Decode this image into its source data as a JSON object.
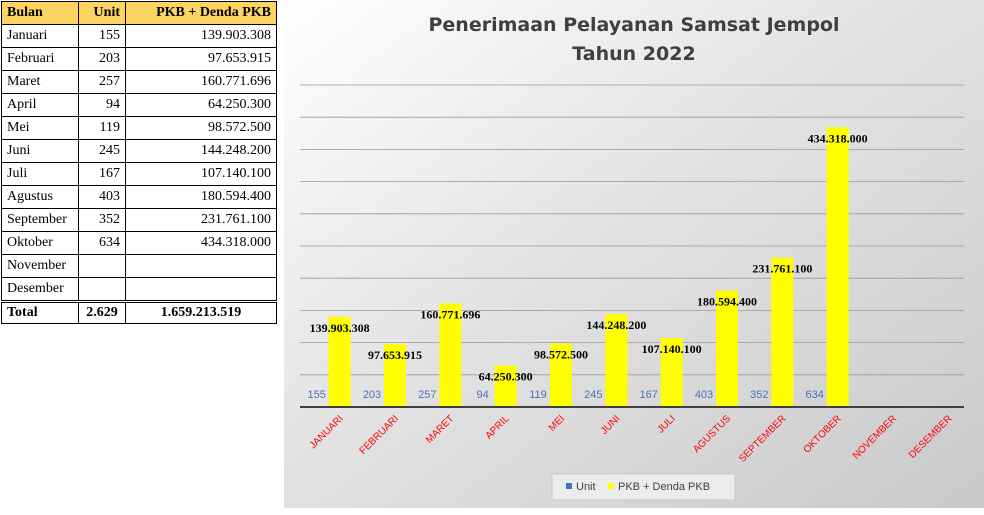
{
  "table": {
    "headers": [
      "Bulan",
      "Unit",
      "PKB + Denda PKB"
    ],
    "rows": [
      {
        "month": "Januari",
        "unit": "155",
        "value": "139.903.308"
      },
      {
        "month": "Februari",
        "unit": "203",
        "value": "97.653.915"
      },
      {
        "month": "Maret",
        "unit": "257",
        "value": "160.771.696"
      },
      {
        "month": "April",
        "unit": "94",
        "value": "64.250.300"
      },
      {
        "month": "Mei",
        "unit": "119",
        "value": "98.572.500"
      },
      {
        "month": "Juni",
        "unit": "245",
        "value": "144.248.200"
      },
      {
        "month": "Juli",
        "unit": "167",
        "value": "107.140.100"
      },
      {
        "month": "Agustus",
        "unit": "403",
        "value": "180.594.400"
      },
      {
        "month": "September",
        "unit": "352",
        "value": "231.761.100"
      },
      {
        "month": "Oktober",
        "unit": "634",
        "value": "434.318.000"
      },
      {
        "month": "November",
        "unit": "",
        "value": ""
      },
      {
        "month": "Desember",
        "unit": "",
        "value": ""
      }
    ],
    "total": {
      "label": "Total",
      "unit": "2.629",
      "value": "1.659.213.519"
    },
    "header_color": "#fcd462"
  },
  "chart_data": {
    "type": "bar",
    "title": "Penerimaan Pelayanan Samsat Jempol",
    "subtitle": "Tahun 2022",
    "categories": [
      "JANUARI",
      "FEBRUARI",
      "MARET",
      "APRIL",
      "MEI",
      "JUNI",
      "JULI",
      "AGUSTUS",
      "SEPTEMBER",
      "OKTOBER",
      "NOVEMBER",
      "DESEMBER"
    ],
    "series": [
      {
        "name": "Unit",
        "color": "#4472c4",
        "values": [
          155,
          203,
          257,
          94,
          119,
          245,
          167,
          403,
          352,
          634,
          null,
          null
        ],
        "labels": [
          "155",
          "203",
          "257",
          "94",
          "119",
          "245",
          "167",
          "403",
          "352",
          "634",
          "",
          ""
        ]
      },
      {
        "name": "PKB + Denda PKB",
        "color": "#ffff00",
        "values": [
          139903308,
          97653915,
          160771696,
          64250300,
          98572500,
          144248200,
          107140100,
          180594400,
          231761100,
          434318000,
          null,
          null
        ],
        "labels": [
          "139.903.308",
          "97.653.915",
          "160.771.696",
          "64.250.300",
          "98.572.500",
          "144.248.200",
          "107.140.100",
          "180.594.400",
          "231.761.100",
          "434.318.000",
          "",
          ""
        ]
      }
    ],
    "ylim": [
      0,
      500000000
    ],
    "grid": true,
    "legend_position": "bottom",
    "tick_label_color": "#ff0000",
    "unit_label_color": "#4d72b8"
  }
}
